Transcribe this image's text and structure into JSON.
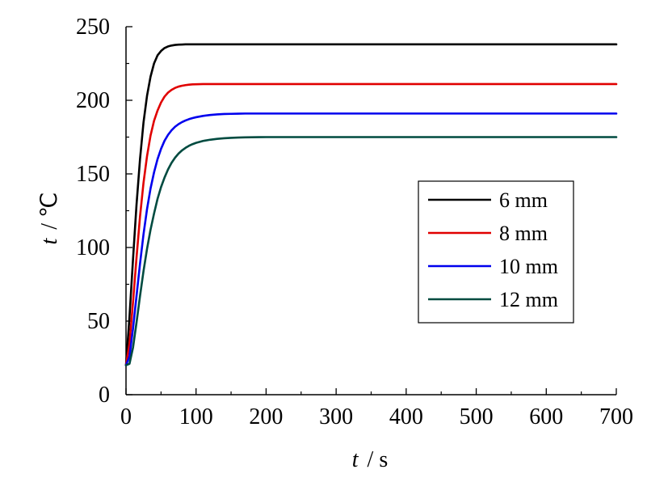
{
  "chart_data": {
    "type": "line",
    "title": "",
    "xlabel": {
      "var": "t",
      "unit": "s"
    },
    "ylabel": {
      "var": "t",
      "unit": "℃"
    },
    "xlim": [
      0,
      700
    ],
    "ylim": [
      0,
      250
    ],
    "x_ticks": [
      0,
      100,
      200,
      300,
      400,
      500,
      600,
      700
    ],
    "y_ticks": [
      0,
      50,
      100,
      150,
      200,
      250
    ],
    "grid": false,
    "legend_position": "center-right",
    "x": [
      0,
      5,
      10,
      15,
      20,
      25,
      30,
      35,
      40,
      45,
      50,
      55,
      60,
      65,
      70,
      75,
      80,
      85,
      90,
      95,
      100,
      110,
      120,
      130,
      140,
      150,
      160,
      170,
      180,
      190,
      200,
      210,
      220,
      230,
      240,
      250,
      260,
      280,
      300,
      350,
      400,
      450,
      500,
      550,
      600,
      650,
      700
    ],
    "series": [
      {
        "name": "6 mm",
        "color": "#000000",
        "values": [
          20,
          53,
          92,
          129,
          160,
          185,
          203,
          216,
          225,
          230.5,
          233.5,
          235.5,
          236.6,
          237.2,
          237.6,
          237.8,
          237.9,
          238,
          238,
          238,
          238,
          238,
          238,
          238,
          238,
          238,
          238,
          238,
          238,
          238,
          238,
          238,
          238,
          238,
          238,
          238,
          238,
          238,
          238,
          238,
          238,
          238,
          238,
          238,
          238,
          238,
          238
        ]
      },
      {
        "name": "8 mm",
        "color": "#e00000",
        "values": [
          20,
          35,
          63,
          93,
          121,
          144,
          162,
          176,
          186,
          193,
          198.5,
          202.5,
          205.2,
          207.1,
          208.4,
          209.3,
          209.9,
          210.3,
          210.6,
          210.8,
          210.9,
          211,
          211,
          211,
          211,
          211,
          211,
          211,
          211,
          211,
          211,
          211,
          211,
          211,
          211,
          211,
          211,
          211,
          211,
          211,
          211,
          211,
          211,
          211,
          211,
          211,
          211
        ]
      },
      {
        "name": "10 mm",
        "color": "#0000ee",
        "values": [
          20,
          26,
          45,
          67,
          89,
          109,
          126,
          140,
          151,
          160,
          167,
          172.5,
          176.5,
          179.6,
          182,
          183.8,
          185.2,
          186.3,
          187.2,
          187.9,
          188.5,
          189.4,
          190,
          190.4,
          190.7,
          190.8,
          190.9,
          191,
          191,
          191,
          191,
          191,
          191,
          191,
          191,
          191,
          191,
          191,
          191,
          191,
          191,
          191,
          191,
          191,
          191,
          191,
          191
        ]
      },
      {
        "name": "12 mm",
        "color": "#004b40",
        "values": [
          20,
          21,
          32,
          49,
          67,
          84,
          99,
          112,
          123,
          133,
          141,
          147.5,
          153,
          157.5,
          161,
          163.8,
          166,
          167.7,
          169.1,
          170.2,
          171.1,
          172.4,
          173.2,
          173.8,
          174.2,
          174.5,
          174.7,
          174.8,
          174.9,
          174.95,
          175,
          175,
          175,
          175,
          175,
          175,
          175,
          175,
          175,
          175,
          175,
          175,
          175,
          175,
          175,
          175,
          175
        ]
      }
    ]
  }
}
